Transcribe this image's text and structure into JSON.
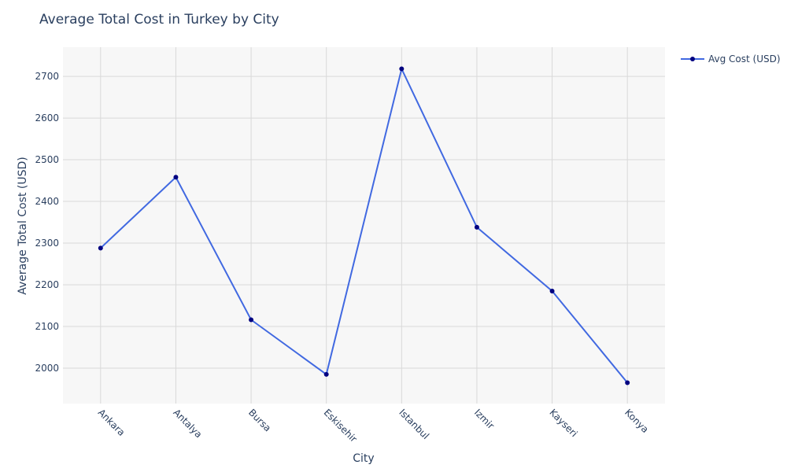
{
  "chart_data": {
    "type": "line",
    "title": "Average Total Cost in Turkey by City",
    "xlabel": "City",
    "ylabel": "Average Total Cost (USD)",
    "categories": [
      "Ankara",
      "Antalya",
      "Bursa",
      "Eskisehir",
      "Istanbul",
      "Izmir",
      "Kayseri",
      "Konya"
    ],
    "series": [
      {
        "name": "Avg Cost (USD)",
        "values": [
          2288,
          2458,
          2116,
          1985,
          2718,
          2338,
          2185,
          1965
        ],
        "line_color": "#4169e1",
        "marker_color": "#000080"
      }
    ],
    "ylim": [
      1915,
      2770
    ],
    "yticks": [
      2000,
      2100,
      2200,
      2300,
      2400,
      2500,
      2600,
      2700
    ],
    "grid": true,
    "legend_position": "top-right",
    "plot_background": "#f7f7f7"
  }
}
